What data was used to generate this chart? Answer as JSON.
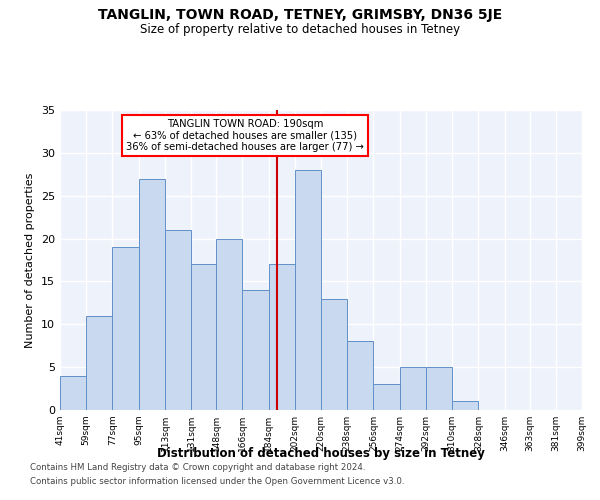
{
  "title": "TANGLIN, TOWN ROAD, TETNEY, GRIMSBY, DN36 5JE",
  "subtitle": "Size of property relative to detached houses in Tetney",
  "xlabel": "Distribution of detached houses by size in Tetney",
  "ylabel": "Number of detached properties",
  "footer1": "Contains HM Land Registry data © Crown copyright and database right 2024.",
  "footer2": "Contains public sector information licensed under the Open Government Licence v3.0.",
  "annotation_line1": "TANGLIN TOWN ROAD: 190sqm",
  "annotation_line2": "← 63% of detached houses are smaller (135)",
  "annotation_line3": "36% of semi-detached houses are larger (77) →",
  "bar_color": "#c9d9f0",
  "bar_edge_color": "#6090c8",
  "reference_line_color": "#cc0000",
  "reference_line_x": 190,
  "bin_edges": [
    41,
    59,
    77,
    95,
    113,
    131,
    148,
    166,
    184,
    202,
    220,
    238,
    256,
    274,
    292,
    310,
    328,
    346,
    363,
    381,
    399
  ],
  "bar_heights": [
    4,
    11,
    19,
    27,
    21,
    17,
    20,
    14,
    17,
    28,
    13,
    8,
    3,
    5,
    5,
    1,
    0,
    0,
    0,
    0
  ],
  "ylim": [
    0,
    35
  ],
  "yticks": [
    0,
    5,
    10,
    15,
    20,
    25,
    30,
    35
  ],
  "bg_color": "#eef2fb",
  "grid_color": "#ffffff",
  "tick_labels": [
    "41sqm",
    "59sqm",
    "77sqm",
    "95sqm",
    "113sqm",
    "131sqm",
    "148sqm",
    "166sqm",
    "184sqm",
    "202sqm",
    "220sqm",
    "238sqm",
    "256sqm",
    "274sqm",
    "292sqm",
    "310sqm",
    "328sqm",
    "346sqm",
    "363sqm",
    "381sqm",
    "399sqm"
  ]
}
